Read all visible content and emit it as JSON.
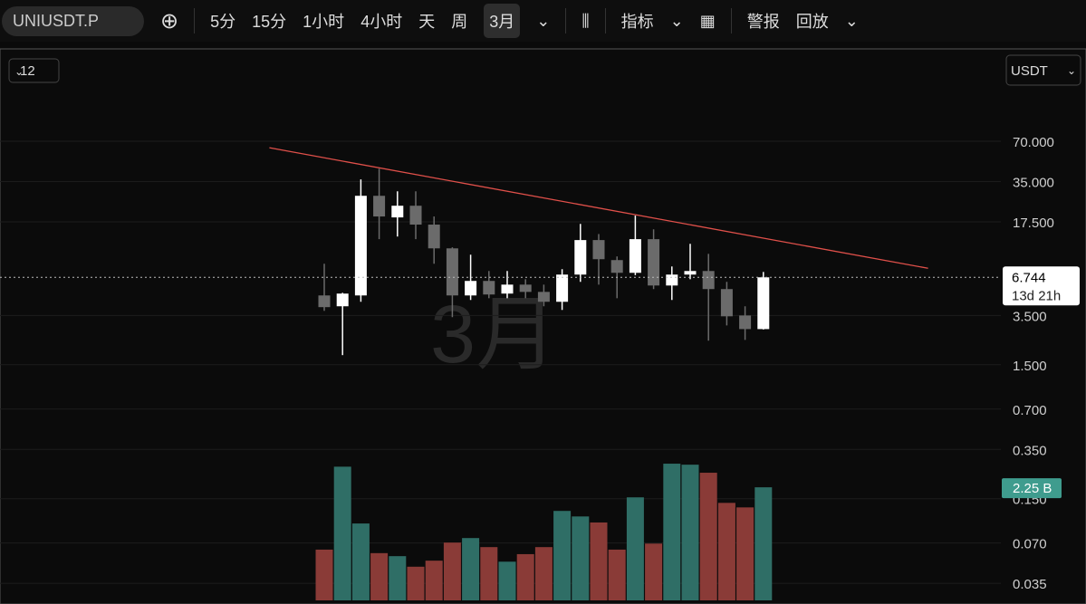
{
  "toolbar": {
    "symbol": "UNIUSDT.P",
    "intervals": [
      "5分",
      "15分",
      "1小时",
      "4小时",
      "天",
      "周",
      "3月"
    ],
    "indicators": "指标",
    "alerts": "警报",
    "replay": "回放"
  },
  "chart_header": {
    "count": "12",
    "currency": "USDT"
  },
  "chart_data": {
    "type": "candlestick",
    "watermark": "3月",
    "log_scale": true,
    "grid": true,
    "up_color": "#ffffff",
    "down_color": "#6b6b6b",
    "ylim": [
      0.0253,
      312
    ],
    "yticks": [
      {
        "value": 70,
        "label": "70.000"
      },
      {
        "value": 35,
        "label": "35.000"
      },
      {
        "value": 17.5,
        "label": "17.500"
      },
      {
        "value": 3.5,
        "label": "3.500"
      },
      {
        "value": 1.5,
        "label": "1.500"
      },
      {
        "value": 0.7,
        "label": "0.700"
      },
      {
        "value": 0.35,
        "label": "0.350"
      },
      {
        "value": 0.15,
        "label": "0.150"
      },
      {
        "value": 0.07,
        "label": "0.070"
      },
      {
        "value": 0.035,
        "label": "0.035"
      }
    ],
    "ohlc": [
      [
        4.94,
        8.52,
        3.79,
        4.04
      ],
      [
        4.1,
        5.17,
        1.77,
        5.1
      ],
      [
        4.94,
        36.3,
        4.43,
        27.4
      ],
      [
        27.4,
        43.7,
        13.0,
        19.2
      ],
      [
        18.9,
        29.6,
        13.6,
        23.1
      ],
      [
        23.1,
        29.6,
        13.0,
        16.7
      ],
      [
        16.7,
        19.2,
        8.52,
        11.1
      ],
      [
        11.1,
        11.3,
        3.4,
        4.94
      ],
      [
        4.94,
        9.95,
        4.57,
        6.34
      ],
      [
        6.34,
        7.52,
        4.71,
        5.02
      ],
      [
        5.1,
        7.52,
        4.71,
        5.95
      ],
      [
        5.95,
        6.53,
        4.71,
        5.25
      ],
      [
        5.25,
        5.95,
        4.1,
        4.43
      ],
      [
        4.43,
        7.76,
        3.85,
        7.07
      ],
      [
        7.07,
        16.9,
        6.24,
        12.8
      ],
      [
        12.8,
        14.2,
        5.95,
        9.21
      ],
      [
        9.07,
        9.66,
        4.71,
        7.29
      ],
      [
        7.29,
        19.5,
        7.0,
        13.0
      ],
      [
        13.0,
        15.4,
        5.51,
        5.86
      ],
      [
        5.86,
        8.13,
        4.57,
        7.07
      ],
      [
        7.07,
        12.0,
        6.53,
        7.52
      ],
      [
        7.52,
        10.1,
        2.27,
        5.51
      ],
      [
        5.51,
        6.24,
        2.95,
        3.45
      ],
      [
        3.5,
        4.1,
        2.3,
        2.77
      ],
      [
        2.77,
        7.4,
        2.75,
        6.744
      ]
    ],
    "countdown": "13d 21h",
    "trendline": {
      "color": "#e0504a",
      "x": [
        -3,
        33
      ],
      "values": [
        62.6,
        7.88
      ]
    },
    "volume": {
      "up_color": "#2f6e66",
      "down_color": "#8a3b37",
      "label_color": "#3f9c8e",
      "values": [
        1.01,
        2.66,
        1.53,
        0.94,
        0.88,
        0.67,
        0.79,
        1.15,
        1.24,
        1.06,
        0.77,
        0.92,
        1.06,
        1.78,
        1.67,
        1.55,
        1.01,
        2.05,
        1.13,
        2.72,
        2.7,
        2.54,
        1.94,
        1.85,
        2.25
      ],
      "value_labels": [
        null,
        null,
        null,
        null,
        null,
        null,
        null,
        null,
        null,
        null,
        null,
        null,
        null,
        null,
        null,
        null,
        null,
        null,
        null,
        null,
        null,
        null,
        null,
        null,
        "2.25 B"
      ]
    }
  }
}
